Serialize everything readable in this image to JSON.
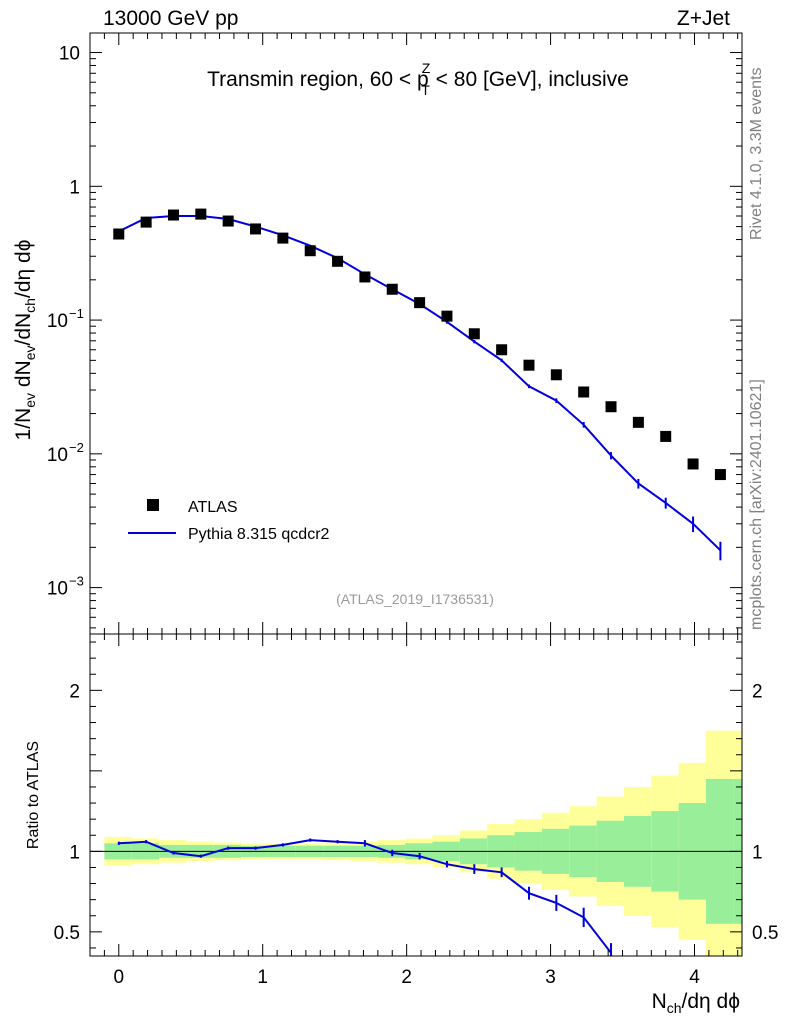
{
  "chart_data": {
    "type": "line",
    "header_left": "13000 GeV pp",
    "header_right": "Z+Jet",
    "title_main": "Transmin region, 60 < p",
    "title_sup": "Z",
    "title_sub": "T",
    "title_tail": " < 80 [GeV], inclusive",
    "side_text_top": "Rivet 4.1.0,  3.3M events",
    "side_text_bottom": "mcplots.cern.ch [arXiv:2401.10621]",
    "analysis_id": "(ATLAS_2019_I1736531)",
    "ylabel_main": "1/N_ev dN_ev/dN_ch/dη dϕ",
    "ylabel_ratio": "Ratio to ATLAS",
    "xlabel": "N_ch/dη dϕ",
    "xlim": [
      -0.2,
      4.33
    ],
    "ylim_main": [
      0.00045,
      14
    ],
    "ylim_ratio": [
      0.35,
      2.35
    ],
    "x_ticks": [
      "0",
      "1",
      "2",
      "3",
      "4"
    ],
    "y_ticks_main": [
      "10",
      "1",
      "10^-1",
      "10^-2",
      "10^-3"
    ],
    "y_ticks_ratio": [
      "2",
      "1",
      "0.5"
    ],
    "y_ticks_ratio_right": [
      "2",
      "1",
      "0.5"
    ],
    "legend": [
      "ATLAS",
      "Pythia 8.315 qcdcr2"
    ],
    "colors": {
      "data": "#000000",
      "mc": "#0000dd",
      "band_outer": "#ffff99",
      "band_inner": "#99ee99"
    },
    "bin_edges": [
      -0.1,
      0.09,
      0.28,
      0.47,
      0.66,
      0.85,
      1.04,
      1.23,
      1.42,
      1.61,
      1.8,
      1.99,
      2.18,
      2.37,
      2.56,
      2.75,
      2.94,
      3.13,
      3.32,
      3.51,
      3.7,
      3.89,
      4.08,
      4.27,
      4.46
    ],
    "x": [
      0.0,
      0.19,
      0.38,
      0.57,
      0.76,
      0.95,
      1.14,
      1.33,
      1.52,
      1.71,
      1.9,
      2.09,
      2.28,
      2.47,
      2.66,
      2.85,
      3.04,
      3.23,
      3.42,
      3.61,
      3.8,
      3.99,
      4.18
    ],
    "series": [
      {
        "name": "ATLAS",
        "values": [
          0.44,
          0.54,
          0.61,
          0.62,
          0.55,
          0.48,
          0.41,
          0.33,
          0.275,
          0.21,
          0.17,
          0.135,
          0.107,
          0.079,
          0.06,
          0.046,
          0.039,
          0.029,
          0.0225,
          0.0172,
          0.0135,
          0.0084,
          0.007
        ]
      },
      {
        "name": "Pythia 8.315 qcdcr2",
        "values": [
          0.46,
          0.58,
          0.6,
          0.6,
          0.57,
          0.5,
          0.43,
          0.36,
          0.29,
          0.22,
          0.17,
          0.132,
          0.097,
          0.069,
          0.05,
          0.032,
          0.025,
          0.0165,
          0.0097,
          0.006,
          0.0043,
          0.003,
          0.0019
        ],
        "errors": [
          0,
          0,
          0,
          0,
          0,
          0,
          0,
          0,
          0,
          0,
          0,
          0,
          0.003,
          0.002,
          0.0015,
          0.001,
          0.001,
          0.0008,
          0.0006,
          0.0005,
          0.0004,
          0.0004,
          0.0003
        ]
      }
    ],
    "ratio": {
      "values": [
        1.05,
        1.06,
        0.99,
        0.97,
        1.02,
        1.02,
        1.04,
        1.07,
        1.06,
        1.05,
        0.99,
        0.97,
        0.92,
        0.89,
        0.87,
        0.74,
        0.68,
        0.59,
        0.37
      ],
      "errors": [
        0.01,
        0.01,
        0.01,
        0.01,
        0.01,
        0.01,
        0.01,
        0.01,
        0.01,
        0.02,
        0.02,
        0.02,
        0.02,
        0.03,
        0.03,
        0.04,
        0.05,
        0.06,
        0.06
      ],
      "band_inner": [
        0.05,
        0.05,
        0.04,
        0.04,
        0.04,
        0.035,
        0.035,
        0.035,
        0.035,
        0.035,
        0.04,
        0.05,
        0.06,
        0.08,
        0.1,
        0.12,
        0.14,
        0.16,
        0.19,
        0.22,
        0.25,
        0.3,
        0.45,
        0.45
      ],
      "band_outer": [
        0.09,
        0.08,
        0.07,
        0.06,
        0.055,
        0.05,
        0.05,
        0.05,
        0.055,
        0.06,
        0.07,
        0.08,
        0.1,
        0.13,
        0.17,
        0.2,
        0.24,
        0.28,
        0.34,
        0.4,
        0.47,
        0.55,
        0.75,
        0.75
      ]
    }
  }
}
